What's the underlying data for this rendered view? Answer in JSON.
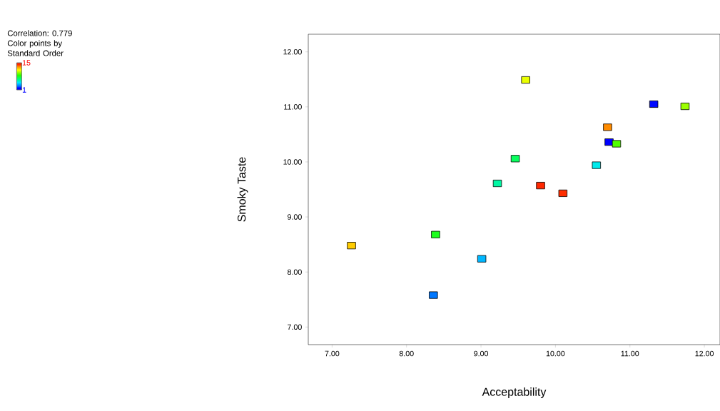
{
  "chart_data": {
    "type": "scatter",
    "xlabel": "Acceptability",
    "ylabel": "Smoky Taste",
    "annotations": [
      "Correlation: 0.779"
    ],
    "clabel": "Color points by Standard Order",
    "marker": "square",
    "grid": false,
    "x": [
      10.72,
      11.32,
      8.36,
      9.01,
      10.55,
      9.22,
      9.46,
      8.39,
      10.82,
      11.74,
      9.6,
      7.26,
      10.7,
      10.1,
      9.8
    ],
    "values": [
      10.36,
      11.05,
      7.58,
      8.24,
      9.94,
      9.61,
      10.06,
      8.68,
      10.33,
      11.01,
      11.49,
      8.48,
      10.63,
      9.43,
      9.57
    ],
    "cvalues": [
      1,
      2,
      3,
      4,
      5,
      6,
      7,
      8,
      9,
      10,
      11,
      12,
      13,
      14,
      15
    ],
    "clim": [
      1,
      15
    ],
    "cticks": [
      1,
      15
    ],
    "xlim": [
      6.68,
      12.21
    ],
    "ylim": [
      6.68,
      12.32
    ],
    "xticks": [
      {
        "value": 7,
        "label": "7.00"
      },
      {
        "value": 8,
        "label": "8.00"
      },
      {
        "value": 9,
        "label": "9.00"
      },
      {
        "value": 10,
        "label": "10.00"
      },
      {
        "value": 11,
        "label": "11.00"
      },
      {
        "value": 12,
        "label": "12.00"
      }
    ],
    "yticks": [
      {
        "value": 7,
        "label": "7.00"
      },
      {
        "value": 8,
        "label": "8.00"
      },
      {
        "value": 9,
        "label": "9.00"
      },
      {
        "value": 10,
        "label": "10.00"
      },
      {
        "value": 11,
        "label": "11.00"
      },
      {
        "value": 12,
        "label": "12.00"
      }
    ]
  }
}
